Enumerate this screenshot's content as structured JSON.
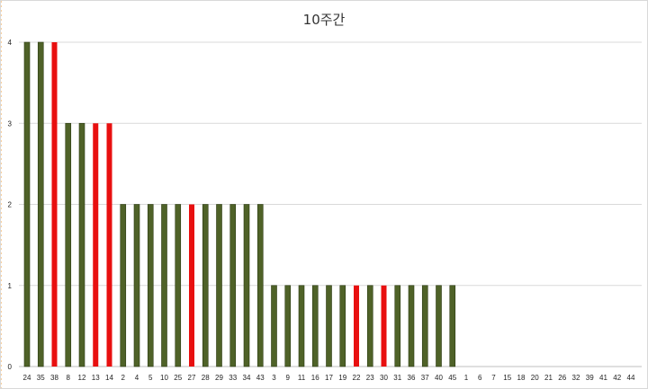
{
  "chart_data": {
    "type": "bar",
    "title": "10주간",
    "xlabel": "",
    "ylabel": "",
    "ylim": [
      0,
      4
    ],
    "yticks": [
      0,
      1,
      2,
      3,
      4
    ],
    "grid": true,
    "legend": "none",
    "colors": {
      "default": "#4f6228",
      "default_edge": "#2b3a12",
      "highlight": "#e81010"
    },
    "categories": [
      "24",
      "35",
      "38",
      "8",
      "12",
      "13",
      "14",
      "2",
      "4",
      "5",
      "10",
      "25",
      "27",
      "28",
      "29",
      "33",
      "34",
      "43",
      "3",
      "9",
      "11",
      "16",
      "17",
      "19",
      "22",
      "23",
      "30",
      "31",
      "36",
      "37",
      "40",
      "45",
      "1",
      "6",
      "7",
      "15",
      "18",
      "20",
      "21",
      "26",
      "32",
      "39",
      "41",
      "42",
      "44"
    ],
    "values": [
      4,
      4,
      4,
      3,
      3,
      3,
      3,
      2,
      2,
      2,
      2,
      2,
      2,
      2,
      2,
      2,
      2,
      2,
      1,
      1,
      1,
      1,
      1,
      1,
      1,
      1,
      1,
      1,
      1,
      1,
      1,
      1,
      0,
      0,
      0,
      0,
      0,
      0,
      0,
      0,
      0,
      0,
      0,
      0,
      0
    ],
    "highlighted": [
      "38",
      "13",
      "14",
      "27",
      "22",
      "30"
    ]
  }
}
